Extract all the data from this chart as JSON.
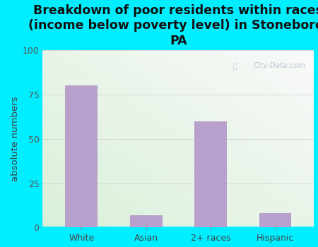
{
  "categories": [
    "White",
    "Asian",
    "2+ races",
    "Hispanic"
  ],
  "values": [
    80,
    7,
    60,
    8
  ],
  "bar_color": "#b8a0cc",
  "title": "Breakdown of poor residents within races\n(income below poverty level) in Stoneboro,\nPA",
  "ylabel": "absolute numbers",
  "ylim": [
    0,
    100
  ],
  "yticks": [
    0,
    25,
    50,
    75,
    100
  ],
  "background_color": "#00eeff",
  "watermark": "City-Data.com",
  "title_fontsize": 12.5,
  "ylabel_fontsize": 9.5,
  "tick_fontsize": 9
}
